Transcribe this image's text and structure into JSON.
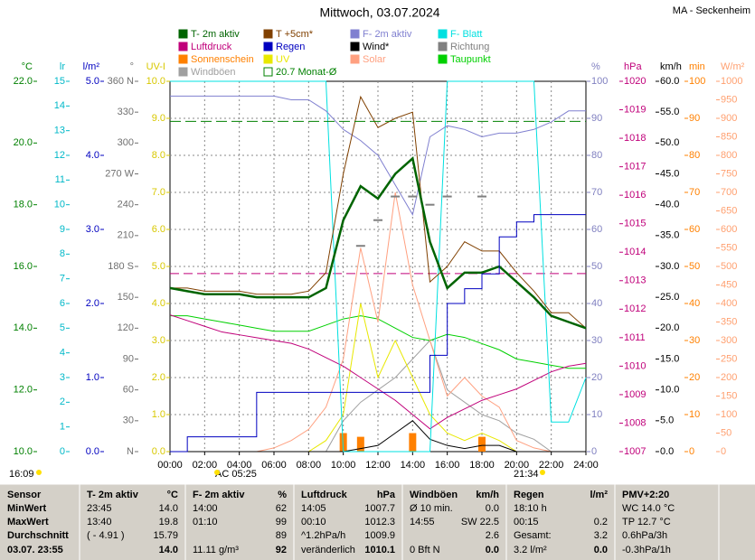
{
  "chart_data": {
    "type": "line",
    "title": "Mittwoch, 03.07.2024",
    "station": "MA - Seckenheim",
    "grid": true,
    "xlim": [
      0,
      24
    ],
    "xticks": [
      {
        "value": 0,
        "label": "00:00"
      },
      {
        "value": 2,
        "label": "02:00"
      },
      {
        "value": 4,
        "label": "04:00"
      },
      {
        "value": 6,
        "label": "06:00"
      },
      {
        "value": 8,
        "label": "08:00"
      },
      {
        "value": 10,
        "label": "10:00"
      },
      {
        "value": 12,
        "label": "12:00"
      },
      {
        "value": 14,
        "label": "14:00"
      },
      {
        "value": 16,
        "label": "16:00"
      },
      {
        "value": 18,
        "label": "18:00"
      },
      {
        "value": 20,
        "label": "20:00"
      },
      {
        "value": 22,
        "label": "22:00"
      },
      {
        "value": 24,
        "label": "24:00"
      }
    ],
    "x": [
      0,
      1,
      2,
      3,
      4,
      5,
      6,
      7,
      8,
      9,
      10,
      11,
      12,
      13,
      14,
      15,
      16,
      17,
      18,
      19,
      20,
      21,
      22,
      23,
      24
    ],
    "axes": [
      {
        "label": "°C",
        "color": "#008000",
        "side": "left",
        "ylim": [
          10,
          22
        ],
        "yticks": [
          {
            "value": 10,
            "label": "10.0"
          },
          {
            "value": 12,
            "label": "12.0"
          },
          {
            "value": 14,
            "label": "14.0"
          },
          {
            "value": 16,
            "label": "16.0"
          },
          {
            "value": 18,
            "label": "18.0"
          },
          {
            "value": 20,
            "label": "20.0"
          },
          {
            "value": 22,
            "label": "22.0"
          }
        ]
      },
      {
        "label": "lr",
        "color": "#00b8c8",
        "side": "left",
        "ylim": [
          0,
          15
        ],
        "yticks": [
          0,
          1,
          2,
          3,
          4,
          5,
          6,
          7,
          8,
          9,
          10,
          11,
          12,
          13,
          14,
          15
        ]
      },
      {
        "label": "l/m²",
        "color": "#0000c0",
        "side": "left",
        "ylim": [
          0,
          5
        ],
        "yticks": [
          {
            "value": 0,
            "label": "0.0"
          },
          {
            "value": 1,
            "label": "1.0"
          },
          {
            "value": 2,
            "label": "2.0"
          },
          {
            "value": 3,
            "label": "3.0"
          },
          {
            "value": 4,
            "label": "4.0"
          },
          {
            "value": 5,
            "label": "5.0"
          }
        ]
      },
      {
        "label": "°",
        "color": "#707070",
        "side": "left",
        "ylim": [
          0,
          360
        ],
        "yticks": [
          {
            "value": 0,
            "label": "N"
          },
          30,
          60,
          90,
          120,
          150,
          {
            "value": 180,
            "label": "180 S"
          },
          210,
          240,
          {
            "value": 270,
            "label": "270 W"
          },
          300,
          330,
          {
            "value": 360,
            "label": "360 N"
          }
        ]
      },
      {
        "label": "UV-I",
        "color": "#d8c800",
        "side": "left",
        "ylim": [
          0,
          10
        ],
        "yticks": [
          {
            "value": 0,
            "label": "0.0"
          },
          {
            "value": 1,
            "label": "1.0"
          },
          {
            "value": 2,
            "label": "2.0"
          },
          {
            "value": 3,
            "label": "3.0"
          },
          {
            "value": 4,
            "label": "4.0"
          },
          {
            "value": 5,
            "label": "5.0"
          },
          {
            "value": 6,
            "label": "6.0"
          },
          {
            "value": 7,
            "label": "7.0"
          },
          {
            "value": 8,
            "label": "8.0"
          },
          {
            "value": 9,
            "label": "9.0"
          },
          {
            "value": 10,
            "label": "10.0"
          }
        ]
      },
      {
        "label": "%",
        "color": "#8080c0",
        "side": "right",
        "ylim": [
          0,
          100
        ],
        "yticks": [
          0,
          10,
          20,
          30,
          40,
          50,
          60,
          70,
          80,
          90,
          100
        ]
      },
      {
        "label": "hPa",
        "color": "#c0007a",
        "side": "right",
        "ylim": [
          1007,
          1020
        ],
        "yticks": [
          1007,
          1008,
          1009,
          1010,
          1011,
          1012,
          1013,
          1014,
          1015,
          1016,
          1017,
          1018,
          1019,
          1020
        ]
      },
      {
        "label": "km/h",
        "color": "#000000",
        "side": "right",
        "ylim": [
          0,
          60
        ],
        "yticks": [
          {
            "value": 0,
            "label": "0.0"
          },
          {
            "value": 5,
            "label": "5.0"
          },
          {
            "value": 10,
            "label": "10.0"
          },
          {
            "value": 15,
            "label": "15.0"
          },
          {
            "value": 20,
            "label": "20.0"
          },
          {
            "value": 25,
            "label": "25.0"
          },
          {
            "value": 30,
            "label": "30.0"
          },
          {
            "value": 35,
            "label": "35.0"
          },
          {
            "value": 40,
            "label": "40.0"
          },
          {
            "value": 45,
            "label": "45.0"
          },
          {
            "value": 50,
            "label": "50.0"
          },
          {
            "value": 55,
            "label": "55.0"
          },
          {
            "value": 60,
            "label": "60.0"
          }
        ]
      },
      {
        "label": "min",
        "color": "#ff8000",
        "side": "right",
        "ylim": [
          0,
          100
        ],
        "yticks": [
          0,
          10,
          20,
          30,
          40,
          50,
          60,
          70,
          80,
          90,
          100
        ]
      },
      {
        "label": "W/m²",
        "color": "#ffa070",
        "side": "right",
        "ylim": [
          0,
          1000
        ],
        "yticks": [
          0,
          50,
          100,
          150,
          200,
          250,
          300,
          350,
          400,
          450,
          500,
          550,
          600,
          650,
          700,
          750,
          800,
          850,
          900,
          950,
          1000
        ]
      }
    ],
    "series": [
      {
        "name": "T- 2m aktiv",
        "color": "#006400",
        "axis": "°C",
        "style": "line",
        "width": 2.5,
        "values": [
          15.3,
          15.2,
          15.1,
          15.1,
          15.1,
          15.0,
          15.0,
          15.0,
          15.0,
          15.3,
          17.5,
          18.6,
          18.2,
          19.0,
          19.5,
          16.8,
          15.3,
          15.8,
          15.8,
          16.0,
          15.5,
          15.0,
          14.4,
          14.2,
          14.0
        ]
      },
      {
        "name": "T +5cm*",
        "color": "#804000",
        "axis": "°C",
        "style": "line",
        "width": 1,
        "values": [
          15.3,
          15.3,
          15.2,
          15.2,
          15.2,
          15.1,
          15.1,
          15.1,
          15.2,
          15.8,
          19.0,
          21.5,
          20.5,
          20.8,
          21.0,
          15.5,
          16.0,
          16.8,
          16.5,
          16.5,
          15.8,
          15.2,
          14.5,
          14.5,
          14.0
        ]
      },
      {
        "name": "F- 2m aktiv",
        "color": "#8080d0",
        "axis": "%",
        "style": "line",
        "width": 1,
        "values": [
          96,
          96,
          96,
          96,
          96,
          96,
          96,
          95,
          95,
          92,
          87,
          84,
          80,
          72,
          64,
          85,
          88,
          87,
          85,
          86,
          86,
          87,
          89,
          92,
          92
        ]
      },
      {
        "name": "F- Blatt",
        "color": "#00e0e0",
        "axis": "%",
        "style": "line",
        "width": 1,
        "values": [
          100,
          100,
          100,
          100,
          100,
          100,
          100,
          100,
          100,
          100,
          0,
          0,
          0,
          0,
          0,
          0,
          100,
          100,
          100,
          100,
          100,
          100,
          8,
          8,
          20
        ]
      },
      {
        "name": "Luftdruck",
        "color": "#c0007a",
        "axis": "hPa",
        "style": "line",
        "width": 1,
        "values": [
          1011.8,
          1011.6,
          1011.4,
          1011.2,
          1011.1,
          1011.0,
          1010.9,
          1010.8,
          1010.6,
          1010.3,
          1010.0,
          1009.6,
          1009.2,
          1008.8,
          1008.3,
          1007.8,
          1008.2,
          1008.5,
          1008.8,
          1009.0,
          1009.2,
          1009.5,
          1009.8,
          1010.0,
          1010.1
        ]
      },
      {
        "name": "Regen",
        "color": "#0000c0",
        "axis": "l/m²",
        "style": "step",
        "width": 1,
        "values": [
          0.0,
          0.2,
          0.2,
          0.2,
          0.2,
          0.8,
          0.8,
          0.8,
          0.8,
          0.8,
          0.8,
          0.8,
          0.8,
          0.8,
          0.8,
          1.3,
          2.0,
          2.2,
          2.4,
          2.9,
          3.1,
          3.2,
          3.2,
          3.2,
          3.2
        ]
      },
      {
        "name": "Wind*",
        "color": "#000000",
        "axis": "km/h",
        "style": "line",
        "width": 1,
        "values": [
          0,
          0,
          0,
          0,
          0,
          0,
          0,
          0,
          0,
          0,
          0,
          0.5,
          1,
          3,
          5,
          2,
          1,
          0.5,
          1,
          1,
          0,
          0,
          0,
          0,
          0
        ]
      },
      {
        "name": "Richtung",
        "color": "#808080",
        "axis": "°",
        "style": "dots",
        "values": [
          null,
          null,
          null,
          null,
          null,
          null,
          null,
          null,
          null,
          null,
          null,
          200,
          225,
          248,
          248,
          240,
          248,
          null,
          248,
          null,
          null,
          null,
          null,
          null,
          null
        ]
      },
      {
        "name": "Sonnenschein",
        "color": "#ff8000",
        "axis": "min",
        "style": "bar",
        "values": [
          0,
          0,
          0,
          0,
          0,
          0,
          0,
          0,
          0,
          0,
          5,
          4,
          0,
          0,
          5,
          0,
          0,
          0,
          4,
          0,
          0,
          0,
          0,
          0,
          0
        ]
      },
      {
        "name": "UV",
        "color": "#e8e800",
        "axis": "UV-I",
        "style": "line",
        "width": 1,
        "values": [
          0,
          0,
          0,
          0,
          0,
          0,
          0,
          0,
          0,
          0.3,
          1,
          4,
          2,
          3,
          2,
          1,
          0.5,
          0.3,
          0.5,
          0.3,
          0,
          0,
          0,
          0,
          0
        ]
      },
      {
        "name": "Solar",
        "color": "#ffa080",
        "axis": "W/m²",
        "style": "line",
        "width": 1,
        "values": [
          0,
          0,
          0,
          0,
          0,
          0,
          10,
          30,
          60,
          120,
          250,
          550,
          350,
          700,
          450,
          300,
          150,
          200,
          150,
          120,
          30,
          10,
          0,
          0,
          0
        ]
      },
      {
        "name": "Taupunkt",
        "color": "#00d000",
        "axis": "°C",
        "style": "line",
        "width": 1,
        "values": [
          14.4,
          14.4,
          14.3,
          14.2,
          14.1,
          14.0,
          13.9,
          13.9,
          13.9,
          14.1,
          14.3,
          14.4,
          14.3,
          14.0,
          13.7,
          13.6,
          13.8,
          13.7,
          13.5,
          13.3,
          13.0,
          12.9,
          12.8,
          12.7,
          12.7
        ]
      },
      {
        "name": "Windböen",
        "color": "#a0a0a0",
        "axis": "km/h",
        "style": "line",
        "width": 1,
        "values": [
          0,
          0,
          0,
          0,
          0,
          0,
          0,
          0,
          0,
          0,
          5,
          8,
          10,
          12,
          15,
          18,
          10,
          8,
          6,
          5,
          3,
          2,
          0,
          0,
          0
        ]
      },
      {
        "name": "20.7 Monat-Ø",
        "color": "#008000",
        "axis": "°C",
        "style": "hline",
        "value": 20.7
      }
    ],
    "reference_lines": [
      {
        "value": 1013.25,
        "axis": "hPa",
        "color": "#c0007a"
      }
    ],
    "annotations": [
      "16:09",
      "AC 05:25",
      "21:34"
    ]
  },
  "table": {
    "columns": [
      {
        "header": {
          "left": "Sensor"
        },
        "rows": [
          {
            "left": "MinWert"
          },
          {
            "left": "MaxWert"
          },
          {
            "left": "Durchschnitt"
          },
          {
            "left": "03.07. 23:55"
          }
        ]
      },
      {
        "header": {
          "left": "T- 2m aktiv",
          "right": "°C"
        },
        "rows": [
          {
            "left": "23:45",
            "right": "14.0"
          },
          {
            "left": "13:40",
            "right": "19.8"
          },
          {
            "left": "( - 4.91 )",
            "right": "15.79"
          },
          {
            "right": "14.0"
          }
        ]
      },
      {
        "header": {
          "left": "F- 2m aktiv",
          "right": "%"
        },
        "rows": [
          {
            "left": "14:00",
            "right": "62"
          },
          {
            "left": "01:10",
            "right": "99"
          },
          {
            "right": "89"
          },
          {
            "left": "11.11 g/m³",
            "right": "92"
          }
        ]
      },
      {
        "header": {
          "left": "Luftdruck",
          "right": "hPa"
        },
        "rows": [
          {
            "left": "14:05",
            "right": "1007.7"
          },
          {
            "left": "00:10",
            "right": "1012.3"
          },
          {
            "left": "^1.2hPa/h",
            "right": "1009.9"
          },
          {
            "left": "veränderlich",
            "right": "1010.1"
          }
        ]
      },
      {
        "header": {
          "left": "Windböen",
          "right": "km/h"
        },
        "rows": [
          {
            "left": "Ø 10 min.",
            "right": "0.0"
          },
          {
            "left": "14:55",
            "right": "SW 22.5"
          },
          {
            "right": "2.6"
          },
          {
            "left": "0 Bft N",
            "right": "0.0"
          }
        ]
      },
      {
        "header": {
          "left": "Regen",
          "right": "l/m²"
        },
        "rows": [
          {
            "left": "18:10 h"
          },
          {
            "left": "00:15",
            "right": "0.2"
          },
          {
            "left": "Gesamt:",
            "right": "3.2"
          },
          {
            "left": "3.2 l/m²",
            "right": "0.0"
          }
        ]
      },
      {
        "header": {
          "left": "PMV+2:20"
        },
        "rows": [
          {
            "left": "WC 14.0 °C"
          },
          {
            "left": "TP 12.7 °C"
          },
          {
            "left": "0.6hPa/3h"
          },
          {
            "left": "-0.3hPa/1h"
          }
        ]
      }
    ]
  }
}
